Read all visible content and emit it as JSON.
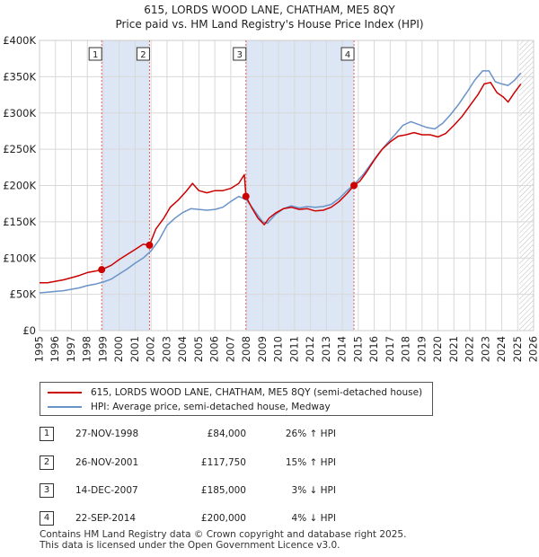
{
  "title_line1": "615, LORDS WOOD LANE, CHATHAM, ME5 8QY",
  "title_line2": "Price paid vs. HM Land Registry's House Price Index (HPI)",
  "colors": {
    "property_line": "#cc0000",
    "hpi_line": "#6a93c8",
    "shade": "#dde6f5",
    "marker_vline": "#e06060",
    "grid": "#d8d8d8",
    "marker_dot": "#cc0000"
  },
  "legend": {
    "property_label": "615, LORDS WOOD LANE, CHATHAM, ME5 8QY (semi-detached house)",
    "hpi_label": "HPI: Average price, semi-detached house, Medway"
  },
  "transactions": [
    {
      "num": "1",
      "date": "27-NOV-1998",
      "price": "£84,000",
      "hpi": "26% ↑ HPI"
    },
    {
      "num": "2",
      "date": "26-NOV-2001",
      "price": "£117,750",
      "hpi": "15% ↑ HPI"
    },
    {
      "num": "3",
      "date": "14-DEC-2007",
      "price": "£185,000",
      "hpi": "3% ↓ HPI"
    },
    {
      "num": "4",
      "date": "22-SEP-2014",
      "price": "£200,000",
      "hpi": "4% ↓ HPI"
    }
  ],
  "footer_line1": "Contains HM Land Registry data © Crown copyright and database right 2025.",
  "footer_line2": "This data is licensed under the Open Government Licence v3.0.",
  "chart_data": {
    "type": "line",
    "title": "615, LORDS WOOD LANE, CHATHAM, ME5 8QY — Price paid vs. HM Land Registry's House Price Index (HPI)",
    "xlabel": "",
    "ylabel": "",
    "xlim": [
      1995,
      2026
    ],
    "ylim": [
      0,
      400000
    ],
    "grid": true,
    "legend_position": "below",
    "x_ticks": [
      1995,
      1996,
      1997,
      1998,
      1999,
      2000,
      2001,
      2002,
      2003,
      2004,
      2005,
      2006,
      2007,
      2008,
      2009,
      2010,
      2011,
      2012,
      2013,
      2014,
      2015,
      2016,
      2017,
      2018,
      2019,
      2020,
      2021,
      2022,
      2023,
      2024,
      2025,
      2026
    ],
    "y_ticks": [
      {
        "value": 0,
        "label": "£0"
      },
      {
        "value": 50000,
        "label": "£50K"
      },
      {
        "value": 100000,
        "label": "£100K"
      },
      {
        "value": 150000,
        "label": "£150K"
      },
      {
        "value": 200000,
        "label": "£200K"
      },
      {
        "value": 250000,
        "label": "£250K"
      },
      {
        "value": 300000,
        "label": "£300K"
      },
      {
        "value": 350000,
        "label": "£350K"
      },
      {
        "value": 400000,
        "label": "£400K"
      }
    ],
    "shaded_ranges": [
      [
        1998.9,
        2001.9
      ],
      [
        2007.95,
        2014.73
      ]
    ],
    "hatched_after": 2025.1,
    "markers": [
      {
        "label": "1",
        "x": 1998.9,
        "y": 84000
      },
      {
        "label": "2",
        "x": 2001.9,
        "y": 117750
      },
      {
        "label": "3",
        "x": 2007.95,
        "y": 185000
      },
      {
        "label": "4",
        "x": 2014.73,
        "y": 200000
      }
    ],
    "series": [
      {
        "name": "615, LORDS WOOD LANE, CHATHAM, ME5 8QY (semi-detached house)",
        "color": "#cc0000",
        "x": [
          1995,
          1995.5,
          1996,
          1996.5,
          1997,
          1997.5,
          1998,
          1998.5,
          1998.9,
          1999.5,
          2000,
          2000.5,
          2001,
          2001.5,
          2001.9,
          2002.3,
          2002.8,
          2003.2,
          2003.7,
          2004.2,
          2004.6,
          2005,
          2005.5,
          2006,
          2006.5,
          2007,
          2007.5,
          2007.85,
          2007.95,
          2008.3,
          2008.7,
          2009.1,
          2009.4,
          2009.8,
          2010.3,
          2010.8,
          2011.3,
          2011.8,
          2012.3,
          2012.8,
          2013.3,
          2013.8,
          2014.3,
          2014.73,
          2015.1,
          2015.5,
          2016,
          2016.5,
          2017,
          2017.5,
          2018,
          2018.5,
          2019,
          2019.5,
          2020,
          2020.5,
          2021,
          2021.5,
          2022,
          2022.5,
          2022.9,
          2023.3,
          2023.7,
          2024.1,
          2024.4,
          2024.8,
          2025.2
        ],
        "values": [
          66000,
          66000,
          68000,
          70000,
          73000,
          76000,
          80000,
          82000,
          84000,
          90000,
          98000,
          105000,
          112000,
          119000,
          117750,
          140000,
          155000,
          170000,
          180000,
          192000,
          203000,
          193000,
          190000,
          193000,
          193000,
          196000,
          203000,
          215000,
          185000,
          170000,
          155000,
          146000,
          155000,
          162000,
          168000,
          170000,
          167000,
          168000,
          165000,
          166000,
          170000,
          178000,
          189000,
          200000,
          206000,
          218000,
          235000,
          250000,
          260000,
          268000,
          270000,
          273000,
          270000,
          270000,
          267000,
          272000,
          283000,
          295000,
          310000,
          325000,
          340000,
          342000,
          328000,
          322000,
          315000,
          328000,
          340000
        ]
      },
      {
        "name": "HPI: Average price, semi-detached house, Medway",
        "color": "#6a93c8",
        "x": [
          1995,
          1995.5,
          1996,
          1996.5,
          1997,
          1997.5,
          1998,
          1998.5,
          1999,
          1999.5,
          2000,
          2000.5,
          2001,
          2001.5,
          2002,
          2002.5,
          2003,
          2003.5,
          2004,
          2004.5,
          2005,
          2005.5,
          2006,
          2006.5,
          2007,
          2007.5,
          2008,
          2008.5,
          2009,
          2009.3,
          2009.8,
          2010.3,
          2010.8,
          2011.3,
          2011.8,
          2012.3,
          2012.8,
          2013.3,
          2013.8,
          2014.3,
          2014.8,
          2015.3,
          2015.8,
          2016.3,
          2016.8,
          2017.3,
          2017.8,
          2018.3,
          2018.8,
          2019.3,
          2019.8,
          2020.3,
          2020.8,
          2021.3,
          2021.8,
          2022.3,
          2022.8,
          2023.2,
          2023.6,
          2024,
          2024.4,
          2024.8,
          2025.2
        ],
        "values": [
          52000,
          53000,
          54000,
          55000,
          57000,
          59000,
          62000,
          64000,
          67000,
          71000,
          78000,
          85000,
          93000,
          100000,
          110000,
          125000,
          145000,
          155000,
          163000,
          168000,
          167000,
          166000,
          167000,
          170000,
          178000,
          185000,
          180000,
          165000,
          150000,
          148000,
          160000,
          168000,
          172000,
          169000,
          171000,
          170000,
          171000,
          174000,
          182000,
          193000,
          203000,
          215000,
          230000,
          245000,
          258000,
          270000,
          283000,
          288000,
          284000,
          280000,
          278000,
          286000,
          298000,
          312000,
          328000,
          345000,
          358000,
          358000,
          343000,
          340000,
          338000,
          345000,
          355000
        ]
      }
    ]
  }
}
